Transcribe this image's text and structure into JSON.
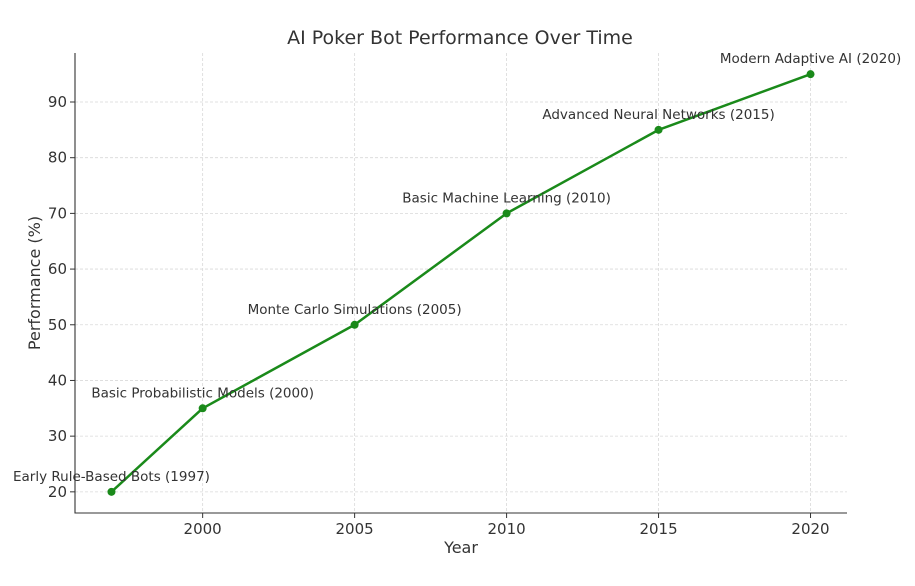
{
  "chart_data": {
    "type": "line",
    "title": "AI Poker Bot Performance Over Time",
    "xlabel": "Year",
    "ylabel": "Performance (%)",
    "x": [
      1997,
      2000,
      2005,
      2010,
      2015,
      2020
    ],
    "xlim": [
      1995.8,
      2021.2
    ],
    "ylim": [
      16.2,
      98.8
    ],
    "xticks": [
      2000,
      2005,
      2010,
      2015,
      2020
    ],
    "yticks": [
      20,
      30,
      40,
      50,
      60,
      70,
      80,
      90
    ],
    "grid": true,
    "series": [
      {
        "color": "#1a8a1a",
        "values": [
          20,
          35,
          50,
          70,
          85,
          95
        ]
      }
    ],
    "annotations": [
      "Early Rule-Based Bots (1997)",
      "Basic Probabilistic Models (2000)",
      "Monte Carlo Simulations (2005)",
      "Basic Machine Learning (2010)",
      "Advanced Neural Networks (2015)",
      "Modern Adaptive AI (2020)"
    ]
  }
}
